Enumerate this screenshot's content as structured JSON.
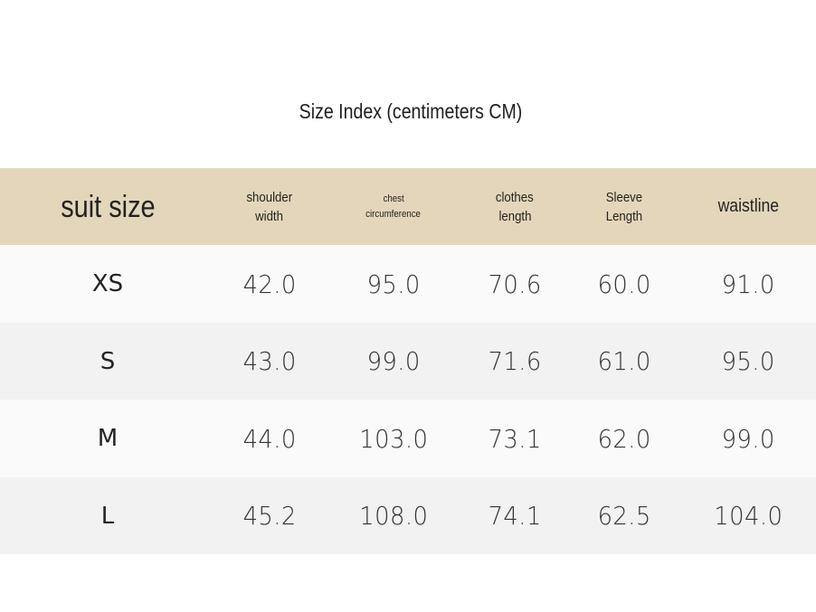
{
  "title": "Size Index (centimeters CM)",
  "table": {
    "header": [
      [
        "suit size"
      ],
      [
        "shoulder",
        "width"
      ],
      [
        "chest",
        "circumference"
      ],
      [
        "clothes",
        "length"
      ],
      [
        "Sleeve",
        "Length"
      ],
      [
        "waistline"
      ]
    ],
    "rows": [
      [
        "XS",
        "42.0",
        "95.0",
        "70.6",
        "60.0",
        "91.0"
      ],
      [
        "S",
        "43.0",
        "99.0",
        "71.6",
        "61.0",
        "95.0"
      ],
      [
        "M",
        "44.0",
        "103.0",
        "73.1",
        "62.0",
        "99.0"
      ],
      [
        "L",
        "45.2",
        "108.0",
        "74.1",
        "62.5",
        "104.0"
      ]
    ]
  }
}
